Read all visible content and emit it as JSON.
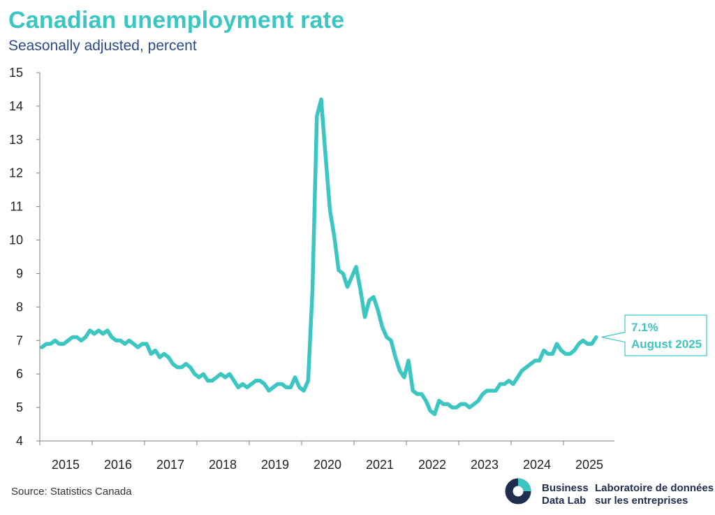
{
  "chart_data": {
    "type": "line",
    "title": "Canadian unemployment rate",
    "subtitle": "Seasonally adjusted, percent",
    "ylim": [
      4,
      15
    ],
    "yticks": [
      4,
      5,
      6,
      7,
      8,
      9,
      10,
      11,
      12,
      13,
      14,
      15
    ],
    "xticks": [
      "2015",
      "2016",
      "2017",
      "2018",
      "2019",
      "2020",
      "2021",
      "2022",
      "2023",
      "2024",
      "2025"
    ],
    "x_start": "2015-01",
    "x_end": "2025-08",
    "series": [
      {
        "color": "#3cc6c2",
        "values": [
          6.8,
          6.9,
          6.9,
          7.0,
          6.9,
          6.9,
          7.0,
          7.1,
          7.1,
          7.0,
          7.1,
          7.3,
          7.2,
          7.3,
          7.2,
          7.3,
          7.1,
          7.0,
          7.0,
          6.9,
          7.0,
          6.9,
          6.8,
          6.9,
          6.9,
          6.6,
          6.7,
          6.5,
          6.6,
          6.5,
          6.3,
          6.2,
          6.2,
          6.3,
          6.2,
          6.0,
          5.9,
          6.0,
          5.8,
          5.8,
          5.9,
          6.0,
          5.9,
          6.0,
          5.8,
          5.6,
          5.7,
          5.6,
          5.7,
          5.8,
          5.8,
          5.7,
          5.5,
          5.6,
          5.7,
          5.7,
          5.6,
          5.6,
          5.9,
          5.6,
          5.5,
          5.8,
          8.5,
          13.7,
          14.2,
          12.5,
          10.9,
          10.1,
          9.1,
          9.0,
          8.6,
          8.9,
          9.2,
          8.5,
          7.7,
          8.2,
          8.3,
          7.9,
          7.4,
          7.1,
          7.0,
          6.5,
          6.1,
          5.9,
          6.4,
          5.5,
          5.4,
          5.4,
          5.2,
          4.9,
          4.8,
          5.2,
          5.1,
          5.1,
          5.0,
          5.0,
          5.1,
          5.1,
          5.0,
          5.1,
          5.2,
          5.4,
          5.5,
          5.5,
          5.5,
          5.7,
          5.7,
          5.8,
          5.7,
          5.9,
          6.1,
          6.2,
          6.3,
          6.4,
          6.4,
          6.7,
          6.6,
          6.6,
          6.9,
          6.7,
          6.6,
          6.6,
          6.7,
          6.9,
          7.0,
          6.9,
          6.9,
          7.1
        ]
      }
    ],
    "annotation": {
      "value": "7.1%",
      "label": "August 2025"
    }
  },
  "footer": {
    "source": "Source: Statistics Canada",
    "brand_en_line1": "Business",
    "brand_en_line2": "Data Lab",
    "brand_fr_line1": "Laboratoire de données",
    "brand_fr_line2": "sur les entreprises"
  },
  "colors": {
    "line": "#3cc6c2",
    "title": "#3cc6c2",
    "subtitle": "#2b4a8a",
    "axis": "#7f7f7f",
    "logo_dark": "#1f2d4f",
    "logo_teal": "#3cc6c2"
  }
}
